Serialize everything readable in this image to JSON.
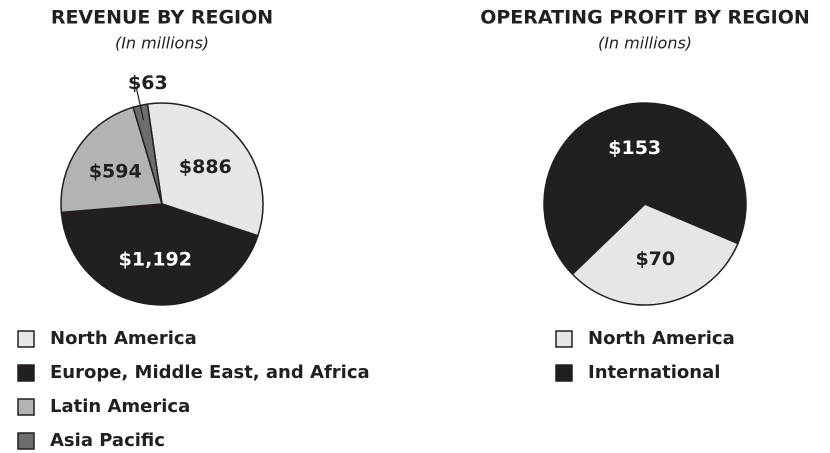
{
  "chart_data": [
    {
      "type": "pie",
      "title": "REVENUE BY REGION",
      "subtitle": "(In millions)",
      "categories": [
        "North America",
        "Europe, Middle East, and Africa",
        "Latin America",
        "Asia Pacific"
      ],
      "values": [
        886,
        1192,
        594,
        63
      ],
      "value_labels": [
        "$886",
        "$1,192",
        "$594",
        "$63"
      ],
      "colors": [
        "#e6e6e6",
        "#231f20",
        "#b3b3b3",
        "#6d6d6d"
      ]
    },
    {
      "type": "pie",
      "title": "OPERATING PROFIT BY REGION",
      "subtitle": "(In millions)",
      "categories": [
        "North America",
        "International"
      ],
      "values": [
        70,
        153
      ],
      "value_labels": [
        "$70",
        "$153"
      ],
      "colors": [
        "#e6e6e6",
        "#231f20"
      ]
    }
  ]
}
